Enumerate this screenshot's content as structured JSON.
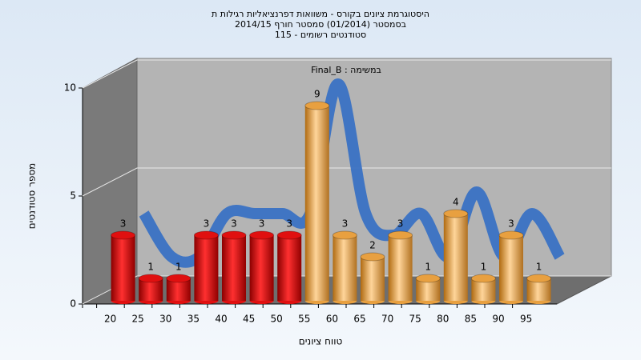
{
  "chart_data": {
    "type": "bar",
    "title": [
      "היסטוגרמת ציונים בקורס - משוואות דפרנציאליות רגילות ת",
      "בסמסטר  (01/2014)  סמסטר חורף 2014/15",
      "115 - סטודנטים רשומים"
    ],
    "annotation": "Final_B : במשימה",
    "x_label": "טווח ציונים",
    "y_label": "מספר סטודנטים",
    "categories": [
      "20",
      "25",
      "30",
      "35",
      "40",
      "45",
      "50",
      "55",
      "60",
      "65",
      "70",
      "75",
      "80",
      "85",
      "90",
      "95"
    ],
    "values": [
      3,
      1,
      1,
      3,
      3,
      3,
      3,
      9,
      3,
      2,
      3,
      1,
      4,
      1,
      3,
      1
    ],
    "colors": [
      "#e01010",
      "#e01010",
      "#e01010",
      "#e01010",
      "#e01010",
      "#e01010",
      "#e01010",
      "#e8a040",
      "#e8a040",
      "#e8a040",
      "#e8a040",
      "#e8a040",
      "#e8a040",
      "#e8a040",
      "#e8a040",
      "#e8a040"
    ],
    "line": {
      "values": [
        3,
        1,
        1,
        3,
        3,
        3,
        3,
        9,
        3,
        2,
        3,
        1,
        4,
        1,
        3,
        1
      ],
      "color": "#3a72c4"
    },
    "ylim": [
      0,
      10
    ],
    "yticks": [
      0,
      5,
      10
    ],
    "grid": true
  }
}
